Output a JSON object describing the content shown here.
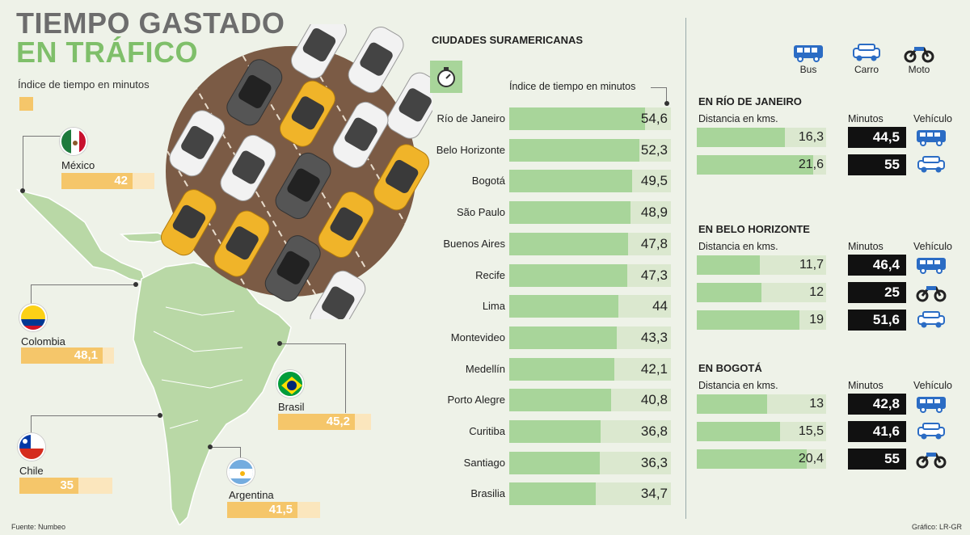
{
  "title_line1": "TIEMPO GASTADO",
  "title_line2": "EN TRÁFICO",
  "legend_label": "Índice de tiempo en minutos",
  "countries": [
    {
      "name": "México",
      "value": "42"
    },
    {
      "name": "Colombia",
      "value": "48,1"
    },
    {
      "name": "Brasil",
      "value": "45,2"
    },
    {
      "name": "Chile",
      "value": "35"
    },
    {
      "name": "Argentina",
      "value": "41,5"
    }
  ],
  "cities_section": {
    "title": "CIUDADES SURAMERICANAS",
    "axis_label": "Índice de tiempo en minutos"
  },
  "vehicle_legend": [
    {
      "icon": "bus-icon",
      "label": "Bus"
    },
    {
      "icon": "car-icon",
      "label": "Carro"
    },
    {
      "icon": "motorcycle-icon",
      "label": "Moto"
    }
  ],
  "column_labels": {
    "distance": "Distancia en kms.",
    "minutes": "Minutos",
    "vehicle": "Vehículo"
  },
  "city_breakdowns": [
    {
      "title": "EN RÍO DE JANEIRO",
      "rows": [
        {
          "distance": "16,3",
          "minutes": "44,5",
          "vehicle": "bus-icon"
        },
        {
          "distance": "21,6",
          "minutes": "55",
          "vehicle": "car-icon"
        }
      ]
    },
    {
      "title": "EN BELO HORIZONTE",
      "rows": [
        {
          "distance": "11,7",
          "minutes": "46,4",
          "vehicle": "bus-icon"
        },
        {
          "distance": "12",
          "minutes": "25",
          "vehicle": "motorcycle-icon"
        },
        {
          "distance": "19",
          "minutes": "51,6",
          "vehicle": "car-icon"
        }
      ]
    },
    {
      "title": "EN BOGOTÁ",
      "rows": [
        {
          "distance": "13",
          "minutes": "42,8",
          "vehicle": "bus-icon"
        },
        {
          "distance": "15,5",
          "minutes": "41,6",
          "vehicle": "car-icon"
        },
        {
          "distance": "20,4",
          "minutes": "55",
          "vehicle": "motorcycle-icon"
        }
      ]
    }
  ],
  "footer": {
    "source": "Fuente: Numbeo",
    "credit": "Gráfico: LR-GR"
  },
  "colors": {
    "accent_green": "#7fbf6a",
    "bar_green": "#a8d59a",
    "track_green": "#dbe8cf",
    "bar_yellow": "#f5c66a",
    "vehicle_blue": "#2b6cc4"
  },
  "chart_data": [
    {
      "type": "bar",
      "title": "CIUDADES SURAMERICANAS",
      "ylabel": "Índice de tiempo en minutos",
      "categories": [
        "Río de Janeiro",
        "Belo Horizonte",
        "Bogotá",
        "São Paulo",
        "Buenos Aires",
        "Recife",
        "Lima",
        "Montevideo",
        "Medellín",
        "Porto Alegre",
        "Curitiba",
        "Santiago",
        "Brasilia"
      ],
      "values": [
        54.6,
        52.3,
        49.5,
        48.9,
        47.8,
        47.3,
        44,
        43.3,
        42.1,
        40.8,
        36.8,
        36.3,
        34.7
      ],
      "labels": [
        "54,6",
        "52,3",
        "49,5",
        "48,9",
        "47,8",
        "47,3",
        "44",
        "43,3",
        "42,1",
        "40,8",
        "36,8",
        "36,3",
        "34,7"
      ],
      "ylim": [
        0,
        65
      ]
    },
    {
      "type": "bar",
      "title": "Índice de tiempo en minutos (países)",
      "categories": [
        "México",
        "Colombia",
        "Brasil",
        "Chile",
        "Argentina"
      ],
      "values": [
        42,
        48.1,
        45.2,
        35,
        41.5
      ],
      "ylim": [
        0,
        55
      ]
    },
    {
      "type": "bar",
      "title": "Distancia en kms.",
      "categories": [
        "Río de Janeiro Bus",
        "Río de Janeiro Carro",
        "Belo Horizonte Bus",
        "Belo Horizonte Moto",
        "Belo Horizonte Carro",
        "Bogotá Bus",
        "Bogotá Carro",
        "Bogotá Moto"
      ],
      "values": [
        16.3,
        21.6,
        11.7,
        12,
        19,
        13,
        15.5,
        20.4
      ],
      "ylim": [
        0,
        24
      ]
    }
  ]
}
